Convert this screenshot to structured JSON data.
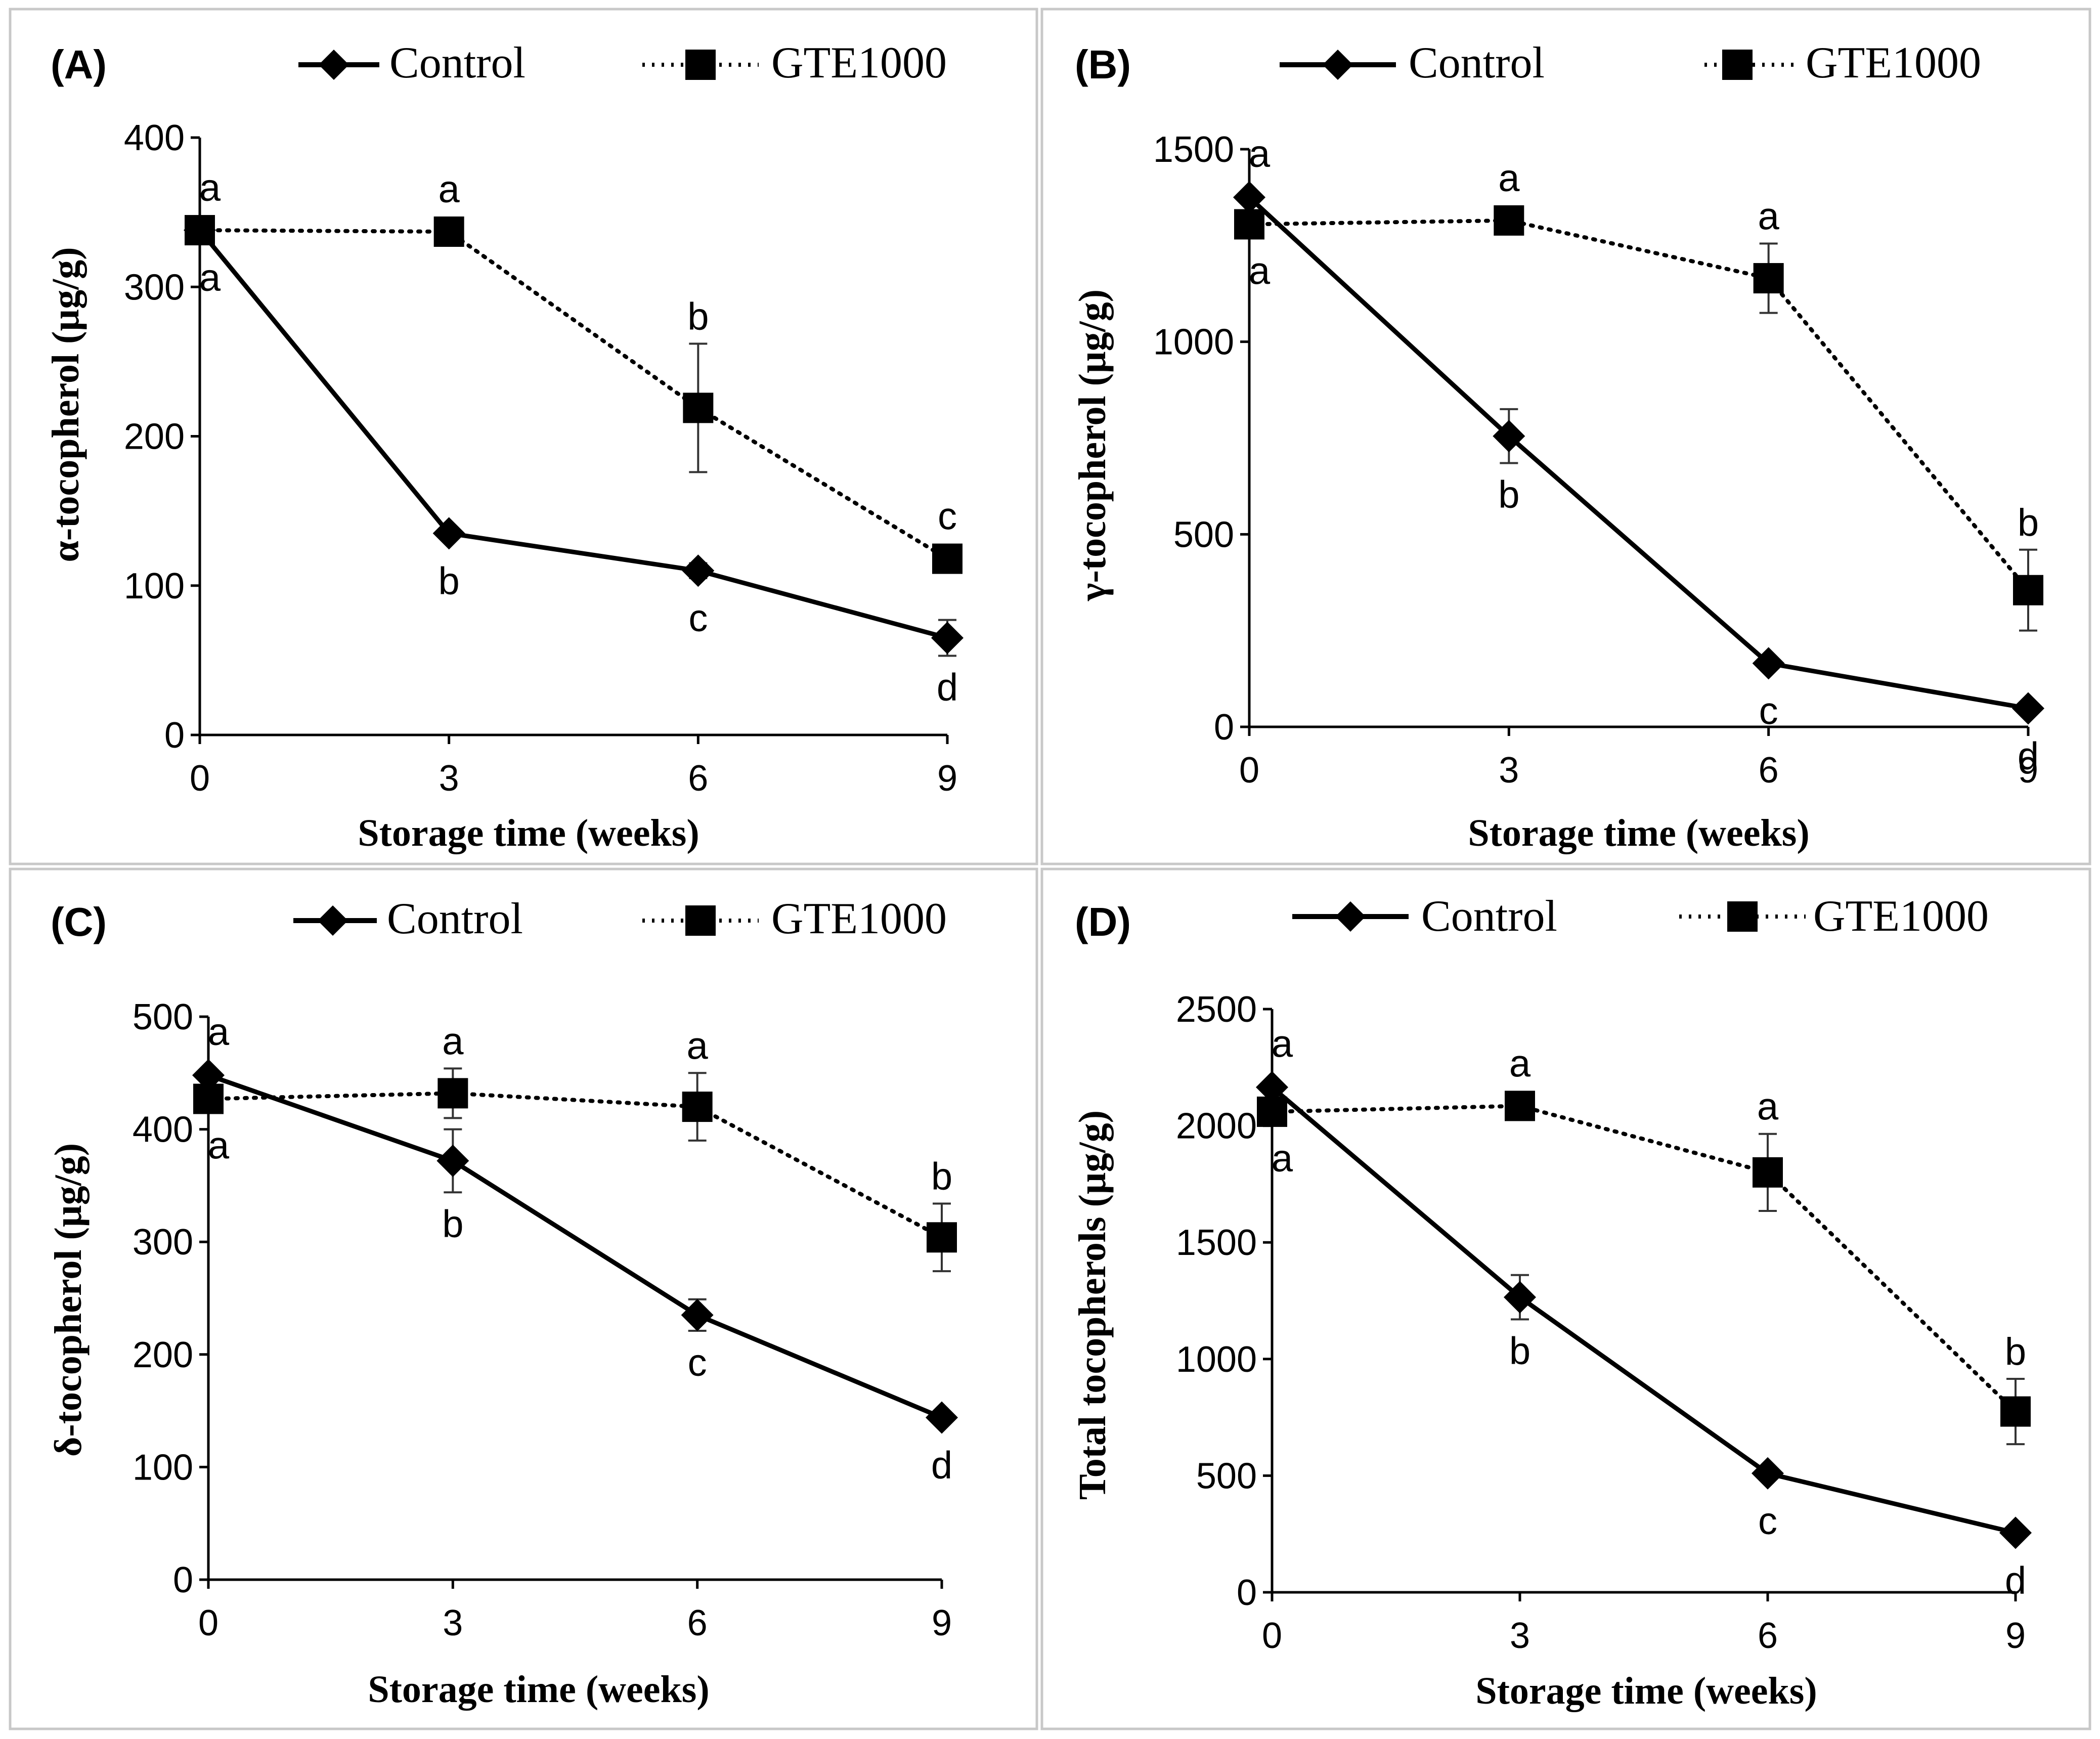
{
  "figure": {
    "legend_labels": {
      "control": "Control",
      "gte": "GTE1000"
    }
  },
  "chart_data": [
    {
      "type": "line",
      "panel_label": "(A)",
      "xlabel": "Storage time (weeks)",
      "ylabel": "α-tocopherol (µg/g)",
      "x": [
        0,
        3,
        6,
        9
      ],
      "xticks": [
        "0",
        "3",
        "6",
        "9"
      ],
      "ylim": [
        0,
        400
      ],
      "yticks": [
        "0",
        "100",
        "200",
        "300",
        "400"
      ],
      "legend_position": "top",
      "series": [
        {
          "name": "Control",
          "values": [
            338,
            135,
            110,
            65
          ],
          "errors": [
            0,
            4,
            5,
            12
          ],
          "letters": [
            "a",
            "b",
            "c",
            "d"
          ],
          "marker": "diamond",
          "line": "solid"
        },
        {
          "name": "GTE1000",
          "values": [
            338,
            337,
            219,
            118
          ],
          "errors": [
            0,
            0,
            43,
            0
          ],
          "letters": [
            "a",
            "a",
            "b",
            "c"
          ],
          "marker": "square",
          "line": "dotted"
        }
      ]
    },
    {
      "type": "line",
      "panel_label": "(B)",
      "xlabel": "Storage time (weeks)",
      "ylabel": "γ-tocopherol (µg/g)",
      "x": [
        0,
        3,
        6,
        9
      ],
      "xticks": [
        "0",
        "3",
        "6",
        "9"
      ],
      "ylim": [
        0,
        1500
      ],
      "yticks": [
        "0",
        "500",
        "1000",
        "1500"
      ],
      "legend_position": "top",
      "series": [
        {
          "name": "Control",
          "values": [
            1375,
            755,
            165,
            48
          ],
          "errors": [
            0,
            70,
            0,
            0
          ],
          "letters": [
            "a",
            "b",
            "c",
            "d"
          ],
          "marker": "diamond",
          "line": "solid"
        },
        {
          "name": "GTE1000",
          "values": [
            1305,
            1315,
            1165,
            355
          ],
          "errors": [
            0,
            0,
            90,
            105
          ],
          "letters": [
            "a",
            "a",
            "a",
            "b"
          ],
          "marker": "square",
          "line": "dotted"
        }
      ]
    },
    {
      "type": "line",
      "panel_label": "(C)",
      "xlabel": "Storage time (weeks)",
      "ylabel": "δ-tocopherol (µg/g)",
      "x": [
        0,
        3,
        6,
        9
      ],
      "xticks": [
        "0",
        "3",
        "6",
        "9"
      ],
      "ylim": [
        0,
        500
      ],
      "yticks": [
        "0",
        "100",
        "200",
        "300",
        "400",
        "500"
      ],
      "legend_position": "top",
      "series": [
        {
          "name": "Control",
          "values": [
            448,
            372,
            235,
            144
          ],
          "errors": [
            0,
            28,
            14,
            0
          ],
          "letters": [
            "a",
            "b",
            "c",
            "d"
          ],
          "marker": "diamond",
          "line": "solid"
        },
        {
          "name": "GTE1000",
          "values": [
            427,
            432,
            420,
            304
          ],
          "errors": [
            0,
            22,
            30,
            30
          ],
          "letters": [
            "a",
            "a",
            "a",
            "b"
          ],
          "marker": "square",
          "line": "dotted"
        }
      ]
    },
    {
      "type": "line",
      "panel_label": "(D)",
      "xlabel": "Storage time (weeks)",
      "ylabel": "Total tocopherols (µg/g)",
      "x": [
        0,
        3,
        6,
        9
      ],
      "xticks": [
        "0",
        "3",
        "6",
        "9"
      ],
      "ylim": [
        0,
        2500
      ],
      "yticks": [
        "0",
        "500",
        "1000",
        "1500",
        "2000",
        "2500"
      ],
      "legend_position": "top",
      "series": [
        {
          "name": "Control",
          "values": [
            2165,
            1265,
            510,
            255
          ],
          "errors": [
            0,
            95,
            0,
            0
          ],
          "letters": [
            "a",
            "b",
            "c",
            "d"
          ],
          "marker": "diamond",
          "line": "solid"
        },
        {
          "name": "GTE1000",
          "values": [
            2060,
            2085,
            1800,
            775
          ],
          "errors": [
            0,
            0,
            165,
            140
          ],
          "letters": [
            "a",
            "a",
            "a",
            "b"
          ],
          "marker": "square",
          "line": "dotted"
        }
      ]
    }
  ]
}
